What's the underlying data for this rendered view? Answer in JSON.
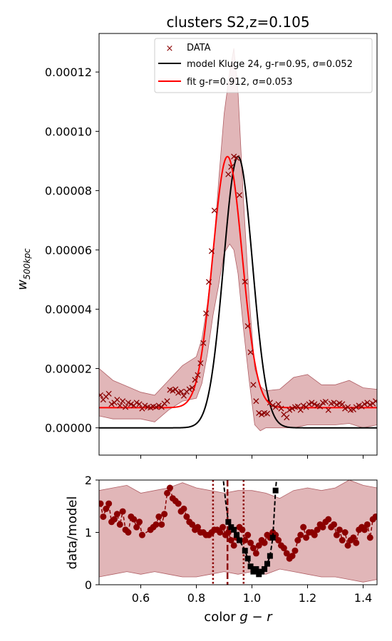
{
  "chart_data": [
    {
      "type": "line",
      "panel": "top",
      "title": "clusters S2,z=0.105",
      "xlabel": "",
      "ylabel": "w_500kpc",
      "ylabel_main": "w",
      "ylabel_sub": "500kpc",
      "xlim": [
        0.45,
        1.45
      ],
      "ylim": [
        -9.2e-06,
        0.000133
      ],
      "yticks": [
        0.0,
        2e-05,
        4e-05,
        6e-05,
        8e-05,
        0.0001,
        0.00012
      ],
      "ytick_labels": [
        "0.00000",
        "0.00002",
        "0.00004",
        "0.00006",
        "0.00008",
        "0.00010",
        "0.00012"
      ],
      "xticks": [
        0.6,
        0.8,
        1.0,
        1.2,
        1.4
      ],
      "legend": {
        "position": "top-right",
        "entries": [
          {
            "label": "DATA",
            "color": "#8b0000",
            "marker": "x"
          },
          {
            "label": "model Kluge 24, g-r=0.95, σ=0.052",
            "color": "#000000",
            "marker": "line"
          },
          {
            "label": "fit g-r=0.912, σ=0.053",
            "color": "#ff0000",
            "marker": "line"
          }
        ]
      },
      "colors": {
        "data": "#8b0000",
        "model": "#000000",
        "fit": "#ff0000",
        "band": "#c87a7e"
      },
      "series": [
        {
          "name": "model",
          "center": 0.95,
          "sigma": 0.052,
          "amplitude": 9.15e-05,
          "baseline": 0.0
        },
        {
          "name": "fit",
          "center": 0.912,
          "sigma": 0.053,
          "amplitude": 8.47e-05,
          "baseline": 6.8e-06
        },
        {
          "name": "DATA",
          "x": [
            0.455,
            0.465,
            0.475,
            0.485,
            0.495,
            0.505,
            0.515,
            0.525,
            0.535,
            0.545,
            0.555,
            0.565,
            0.575,
            0.585,
            0.595,
            0.605,
            0.615,
            0.625,
            0.635,
            0.645,
            0.655,
            0.665,
            0.675,
            0.685,
            0.695,
            0.705,
            0.715,
            0.725,
            0.735,
            0.745,
            0.755,
            0.765,
            0.775,
            0.785,
            0.795,
            0.805,
            0.815,
            0.825,
            0.835,
            0.845,
            0.855,
            0.865,
            0.875,
            0.885,
            0.895,
            0.905,
            0.915,
            0.925,
            0.935,
            0.945,
            0.955,
            0.965,
            0.975,
            0.985,
            0.995,
            1.005,
            1.015,
            1.025,
            1.035,
            1.045,
            1.055,
            1.065,
            1.075,
            1.085,
            1.095,
            1.105,
            1.115,
            1.125,
            1.135,
            1.145,
            1.155,
            1.165,
            1.175,
            1.185,
            1.195,
            1.205,
            1.215,
            1.225,
            1.235,
            1.245,
            1.255,
            1.265,
            1.275,
            1.285,
            1.295,
            1.305,
            1.315,
            1.325,
            1.335,
            1.345,
            1.355,
            1.365,
            1.375,
            1.385,
            1.395,
            1.405,
            1.415,
            1.425,
            1.435,
            1.445
          ],
          "y": [
            1.1e-05,
            9.5e-06,
            1.05e-05,
            1.15e-05,
            8e-06,
            8.5e-06,
            9.5e-06,
            7.5e-06,
            9e-06,
            7e-06,
            8.5e-06,
            8e-06,
            7.5e-06,
            8.5e-06,
            8e-06,
            6.5e-06,
            7.5e-06,
            7e-06,
            6.8e-06,
            7.2e-06,
            7e-06,
            7.5e-06,
            7e-06,
            8.2e-06,
            9e-06,
            1.28e-05,
            1.25e-05,
            1.3e-05,
            1.18e-05,
            1.22e-05,
            1.08e-05,
            1.22e-05,
            1.3e-05,
            1.35e-05,
            1.62e-05,
            1.78e-05,
            2.18e-05,
            2.86e-05,
            3.86e-05,
            4.92e-05,
            5.96e-05,
            7.33e-05,
            null,
            null,
            null,
            null,
            8.55e-05,
            8.8e-05,
            9.15e-05,
            9.1e-05,
            7.85e-05,
            null,
            4.93e-05,
            3.43e-05,
            2.55e-05,
            1.45e-05,
            9e-06,
            5e-06,
            4.5e-06,
            5e-06,
            4.8e-06,
            8.5e-06,
            7.5e-06,
            7e-06,
            8e-06,
            6.5e-06,
            4.5e-06,
            3.5e-06,
            6e-06,
            6.5e-06,
            7e-06,
            7.2e-06,
            6e-06,
            7.5e-06,
            7e-06,
            8e-06,
            8.5e-06,
            8e-06,
            7.5e-06,
            7.2e-06,
            8.5e-06,
            8.8e-06,
            6e-06,
            8.2e-06,
            8.5e-06,
            7.8e-06,
            8.3e-06,
            8e-06,
            6.5e-06,
            7e-06,
            6e-06,
            6.2e-06,
            7e-06,
            7.5e-06,
            7.2e-06,
            8e-06,
            8.5e-06,
            7.8e-06,
            8.2e-06,
            9e-06
          ]
        },
        {
          "name": "band_upper",
          "x": [
            0.45,
            0.5,
            0.55,
            0.6,
            0.65,
            0.7,
            0.75,
            0.8,
            0.82,
            0.84,
            0.86,
            0.88,
            0.9,
            0.92,
            0.935,
            0.95,
            0.97,
            0.99,
            1.01,
            1.03,
            1.05,
            1.1,
            1.15,
            1.2,
            1.25,
            1.3,
            1.35,
            1.4,
            1.45
          ],
          "y": [
            2e-05,
            1.6e-05,
            1.4e-05,
            1.2e-05,
            1.1e-05,
            1.6e-05,
            2.1e-05,
            2.4e-05,
            3e-05,
            4.2e-05,
            5.8e-05,
            8.3e-05,
            0.000106,
            0.00012,
            0.000128,
            0.000113,
            7.6e-05,
            4.4e-05,
            2e-05,
            1.4e-05,
            1.25e-05,
            1.3e-05,
            1.7e-05,
            1.8e-05,
            1.45e-05,
            1.45e-05,
            1.6e-05,
            1.35e-05,
            1.3e-05
          ]
        },
        {
          "name": "band_lower",
          "x": [
            0.45,
            0.5,
            0.55,
            0.6,
            0.65,
            0.7,
            0.75,
            0.8,
            0.82,
            0.84,
            0.86,
            0.88,
            0.9,
            0.92,
            0.935,
            0.95,
            0.97,
            0.99,
            1.01,
            1.03,
            1.05,
            1.1,
            1.15,
            1.2,
            1.25,
            1.3,
            1.35,
            1.4,
            1.45
          ],
          "y": [
            4e-06,
            3e-06,
            3e-06,
            3e-06,
            2e-06,
            6e-06,
            9e-06,
            1e-05,
            1.5e-05,
            2.5e-05,
            3.8e-05,
            4.8e-05,
            5.9e-05,
            6.2e-05,
            6e-05,
            5.2e-05,
            3.3e-05,
            1.6e-05,
            1e-06,
            -1e-06,
            0.0,
            0.0,
            0.0,
            1e-06,
            1e-06,
            1e-06,
            1.5e-06,
            0.0,
            1e-06
          ]
        }
      ]
    },
    {
      "type": "scatter",
      "panel": "bottom",
      "xlabel": "color g − r",
      "xlabel_prefix": "color ",
      "xlabel_math": "g − r",
      "ylabel": "data/model",
      "xlim": [
        0.45,
        1.45
      ],
      "ylim": [
        0,
        2
      ],
      "yticks": [
        0,
        1,
        2
      ],
      "xticks": [
        0.6,
        0.8,
        1.0,
        1.2,
        1.4
      ],
      "xtick_labels": [
        "0.6",
        "0.8",
        "1.0",
        "1.2",
        "1.4"
      ],
      "vlines": [
        {
          "x": 0.86,
          "style": "dotted",
          "color": "#8b0000"
        },
        {
          "x": 0.912,
          "style": "dashed",
          "color": "#8b0000"
        },
        {
          "x": 0.97,
          "style": "dotted",
          "color": "#8b0000"
        }
      ],
      "series": [
        {
          "name": "ratio_circles",
          "color": "#8b0000",
          "x": [
            0.455,
            0.465,
            0.475,
            0.485,
            0.495,
            0.505,
            0.515,
            0.525,
            0.535,
            0.545,
            0.555,
            0.565,
            0.575,
            0.585,
            0.595,
            0.605,
            0.635,
            0.645,
            0.655,
            0.665,
            0.675,
            0.685,
            0.695,
            0.705,
            0.715,
            0.725,
            0.735,
            0.745,
            0.755,
            0.765,
            0.775,
            0.785,
            0.795,
            0.805,
            0.815,
            0.825,
            0.835,
            0.845,
            0.855,
            0.865,
            0.875,
            0.885,
            0.895,
            0.905,
            0.915,
            0.925,
            0.935,
            0.945,
            0.955,
            0.965,
            0.975,
            0.985,
            0.995,
            1.005,
            1.015,
            1.025,
            1.035,
            1.045,
            1.055,
            1.065,
            1.075,
            1.085,
            1.095,
            1.105,
            1.115,
            1.125,
            1.135,
            1.145,
            1.155,
            1.165,
            1.175,
            1.185,
            1.195,
            1.205,
            1.215,
            1.225,
            1.235,
            1.245,
            1.255,
            1.265,
            1.275,
            1.285,
            1.295,
            1.305,
            1.315,
            1.325,
            1.335,
            1.345,
            1.355,
            1.365,
            1.375,
            1.385,
            1.395,
            1.405,
            1.415,
            1.425,
            1.435,
            1.445
          ],
          "y": [
            1.55,
            1.3,
            1.45,
            1.55,
            1.2,
            1.25,
            1.35,
            1.15,
            1.4,
            1.05,
            1.0,
            1.3,
            1.25,
            1.1,
            1.2,
            0.95,
            1.05,
            1.1,
            1.15,
            1.3,
            1.15,
            1.35,
            1.75,
            1.85,
            1.65,
            1.6,
            1.55,
            1.4,
            1.45,
            1.3,
            1.2,
            1.15,
            1.05,
            1.1,
            1.0,
            1.0,
            0.95,
            0.95,
            1.0,
            1.05,
            1.05,
            1.0,
            1.1,
            0.95,
            1.0,
            0.85,
            0.75,
            0.9,
            1.1,
            1.05,
            0.85,
            0.95,
            0.8,
            0.7,
            0.6,
            0.75,
            0.85,
            0.8,
            0.95,
            0.9,
            1.0,
            0.95,
            0.85,
            0.75,
            0.7,
            0.6,
            0.5,
            0.55,
            0.65,
            0.85,
            0.95,
            1.1,
            0.9,
            1.0,
            1.0,
            0.95,
            1.05,
            1.15,
            1.1,
            1.2,
            1.25,
            1.1,
            1.15,
            0.95,
            1.05,
            0.85,
            1.0,
            0.75,
            0.85,
            0.9,
            0.8,
            1.05,
            1.1,
            1.05,
            1.15,
            0.9,
            1.25,
            1.3
          ]
        },
        {
          "name": "ratio_squares",
          "color": "#000000",
          "x": [
            0.915,
            0.925,
            0.935,
            0.945,
            0.955,
            0.975,
            0.985,
            0.995,
            1.005,
            1.015,
            1.025,
            1.035,
            1.045,
            1.055,
            1.065,
            1.075,
            1.085
          ],
          "y": [
            1.2,
            1.1,
            1.05,
            0.95,
            0.85,
            0.65,
            0.5,
            0.35,
            0.25,
            0.3,
            0.2,
            0.25,
            0.3,
            0.4,
            0.55,
            0.9,
            1.8
          ]
        },
        {
          "name": "ratio_dashed_line",
          "color": "#000000",
          "x": [
            0.895,
            0.905,
            0.915,
            0.925,
            0.935,
            0.945,
            0.955,
            0.975,
            0.985,
            0.995,
            1.005,
            1.015,
            1.025,
            1.035,
            1.045,
            1.055,
            1.065,
            1.075,
            1.085,
            1.09
          ],
          "y": [
            2.1,
            1.6,
            1.2,
            1.1,
            1.05,
            0.95,
            0.85,
            0.65,
            0.5,
            0.35,
            0.25,
            0.3,
            0.2,
            0.25,
            0.3,
            0.4,
            0.55,
            0.9,
            1.8,
            2.1
          ]
        },
        {
          "name": "band_upper",
          "x": [
            0.45,
            0.5,
            0.55,
            0.6,
            0.65,
            0.7,
            0.75,
            0.8,
            0.85,
            0.9,
            0.95,
            1.0,
            1.05,
            1.1,
            1.15,
            1.2,
            1.25,
            1.3,
            1.35,
            1.4,
            1.45
          ],
          "y": [
            1.8,
            1.85,
            1.9,
            1.75,
            1.8,
            1.85,
            1.95,
            1.85,
            1.8,
            1.75,
            1.8,
            1.8,
            1.75,
            1.65,
            1.8,
            1.85,
            1.8,
            1.85,
            2.0,
            1.9,
            1.85
          ]
        },
        {
          "name": "band_lower",
          "x": [
            0.45,
            0.5,
            0.55,
            0.6,
            0.65,
            0.7,
            0.75,
            0.8,
            0.85,
            0.9,
            0.95,
            1.0,
            1.05,
            1.1,
            1.15,
            1.2,
            1.25,
            1.3,
            1.35,
            1.4,
            1.45
          ],
          "y": [
            0.15,
            0.2,
            0.25,
            0.2,
            0.25,
            0.2,
            0.15,
            0.15,
            0.2,
            0.25,
            0.2,
            0.25,
            0.2,
            0.3,
            0.25,
            0.2,
            0.15,
            0.15,
            0.1,
            0.05,
            0.1
          ]
        }
      ]
    }
  ]
}
